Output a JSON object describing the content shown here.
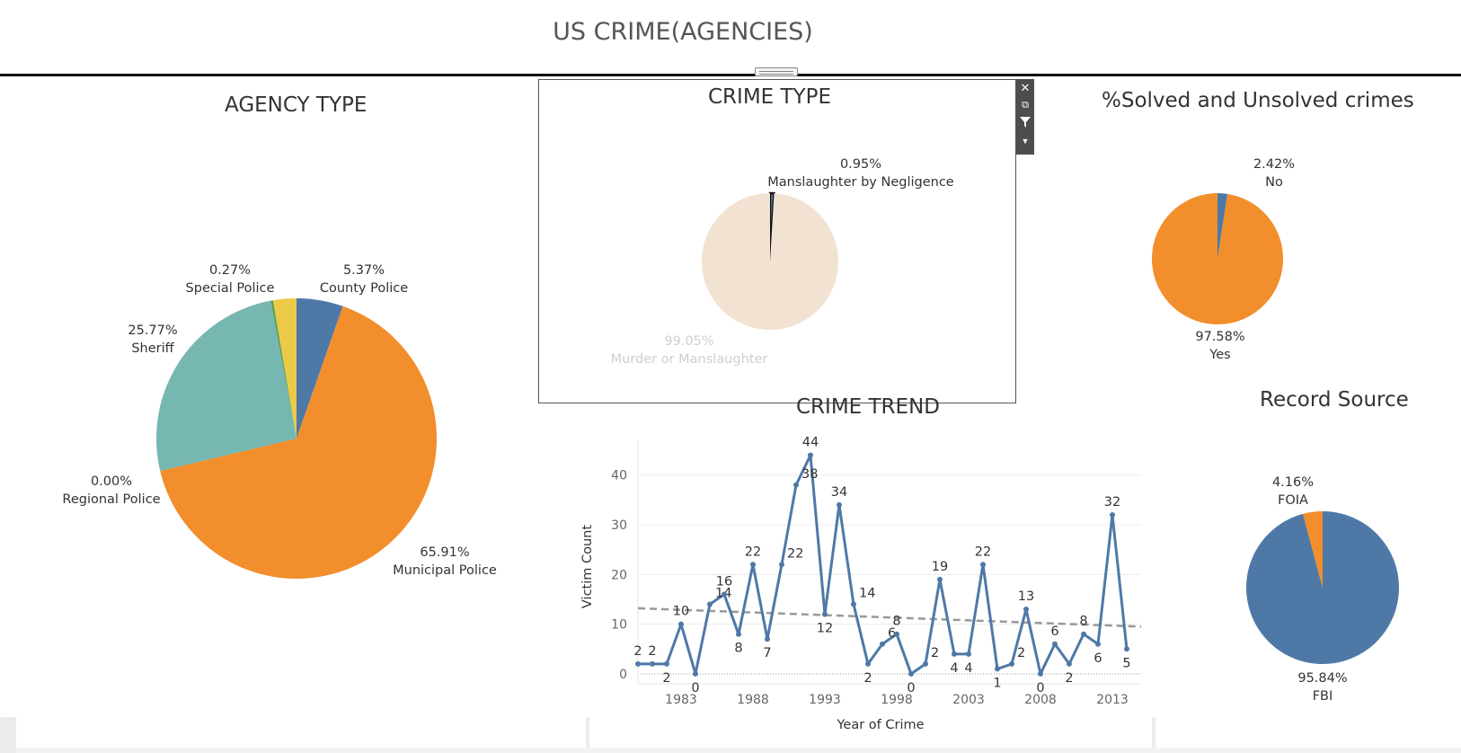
{
  "dashboard_title": "US CRIME(AGENCIES)",
  "toolbar": {
    "close_icon": "close-icon",
    "popout_icon": "pop-out-icon",
    "filter_icon": "filter-icon",
    "more_icon": "dropdown-icon"
  },
  "chart_data": [
    {
      "type": "pie",
      "title": "AGENCY TYPE",
      "slices": [
        {
          "label": "County Police",
          "value": 5.37,
          "value_label": "5.37%",
          "color": "#4e79a7"
        },
        {
          "label": "Municipal Police",
          "value": 65.91,
          "value_label": "65.91%",
          "color": "#f28e2b"
        },
        {
          "label": "Regional Police",
          "value": 0.0,
          "value_label": "0.00%",
          "color": "#e15759"
        },
        {
          "label": "Sheriff",
          "value": 25.77,
          "value_label": "25.77%",
          "color": "#76b7b2"
        },
        {
          "label": "Special Police",
          "value": 0.27,
          "value_label": "0.27%",
          "color": "#59a14f"
        },
        {
          "label": "",
          "value": 2.68,
          "value_label": "",
          "color": "#edc948"
        }
      ]
    },
    {
      "type": "pie",
      "title": "CRIME TYPE",
      "slices": [
        {
          "label": "Manslaughter by Negligence",
          "value": 0.95,
          "value_label": "0.95%",
          "color": "#4e79a7"
        },
        {
          "label": "Murder or Manslaughter",
          "value": 99.05,
          "value_label": "99.05%",
          "color": "#f2e2d2"
        }
      ]
    },
    {
      "type": "pie",
      "title": "%Solved and Unsolved crimes",
      "slices": [
        {
          "label": "No",
          "value": 2.42,
          "value_label": "2.42%",
          "color": "#4e79a7"
        },
        {
          "label": "Yes",
          "value": 97.58,
          "value_label": "97.58%",
          "color": "#f28e2b"
        }
      ]
    },
    {
      "type": "pie",
      "title": "Record Source",
      "slices": [
        {
          "label": "FBI",
          "value": 95.84,
          "value_label": "95.84%",
          "color": "#4e79a7"
        },
        {
          "label": "FOIA",
          "value": 4.16,
          "value_label": "4.16%",
          "color": "#f28e2b"
        }
      ]
    },
    {
      "type": "line",
      "title": "CRIME TREND",
      "xlabel": "Year of Crime",
      "ylabel": "Victim Count",
      "x_ticks": [
        1983,
        1988,
        1993,
        1998,
        2003,
        2008,
        2013
      ],
      "y_ticks": [
        0,
        10,
        20,
        30,
        40
      ],
      "xlim": [
        1980,
        2015
      ],
      "ylim": [
        -2,
        47
      ],
      "x": [
        1980,
        1981,
        1982,
        1983,
        1984,
        1985,
        1986,
        1987,
        1988,
        1989,
        1990,
        1991,
        1992,
        1993,
        1994,
        1995,
        1996,
        1997,
        1998,
        1999,
        2000,
        2001,
        2002,
        2003,
        2004,
        2005,
        2006,
        2007,
        2008,
        2009,
        2010,
        2011,
        2012,
        2013,
        2014
      ],
      "y": [
        2,
        2,
        2,
        10,
        0,
        14,
        16,
        8,
        22,
        7,
        22,
        38,
        44,
        12,
        34,
        14,
        2,
        6,
        8,
        0,
        2,
        19,
        4,
        4,
        22,
        1,
        2,
        13,
        0,
        6,
        2,
        8,
        6,
        32,
        5
      ],
      "trend": {
        "y_at_xmin": 13.2,
        "y_at_xmax": 9.5
      },
      "color": "#4e79a7",
      "grid": true
    }
  ]
}
